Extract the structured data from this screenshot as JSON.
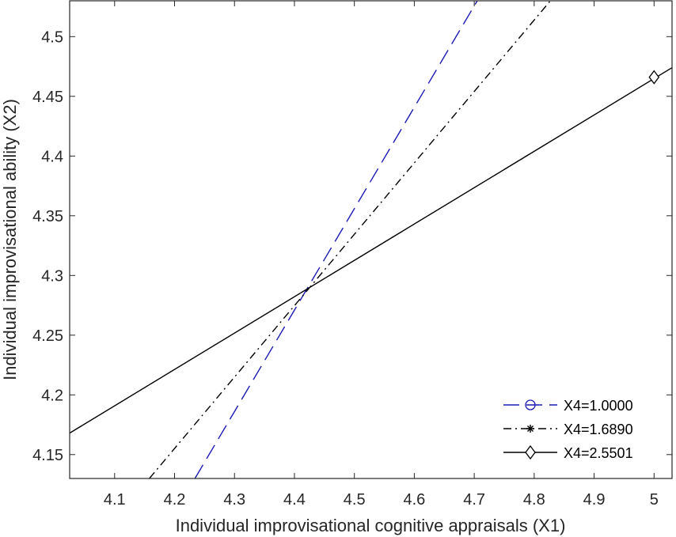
{
  "chart_data": {
    "type": "line",
    "xlabel": "Individual improvisational cognitive appraisals (X1)",
    "ylabel": "Individual improvisational ability (X2)",
    "xlim": [
      4.025,
      5.03
    ],
    "ylim": [
      4.13,
      4.53
    ],
    "xticks": [
      "4.1",
      "4.2",
      "4.3",
      "4.4",
      "4.5",
      "4.6",
      "4.7",
      "4.8",
      "4.9",
      "5"
    ],
    "yticks": [
      "4.15",
      "4.2",
      "4.25",
      "4.3",
      "4.35",
      "4.4",
      "4.45",
      "4.5"
    ],
    "grid": false,
    "legend_position": "bottom-right",
    "series": [
      {
        "name": "X4=1.0000",
        "color": "#1a1ab5",
        "line_style": "dashed",
        "marker": "circle",
        "x": [
          4.234,
          4.705
        ],
        "y": [
          4.13,
          4.53
        ]
      },
      {
        "name": "X4=1.6890",
        "color": "#000000",
        "line_style": "dash-dot",
        "marker": "asterisk",
        "x": [
          4.158,
          4.827
        ],
        "y": [
          4.13,
          4.53
        ]
      },
      {
        "name": "X4=2.5501",
        "color": "#000000",
        "line_style": "solid",
        "marker": "diamond",
        "x": [
          4.025,
          5.03
        ],
        "y": [
          4.168,
          4.474
        ],
        "marker_points": [
          [
            5.0,
            4.466
          ]
        ]
      }
    ]
  }
}
